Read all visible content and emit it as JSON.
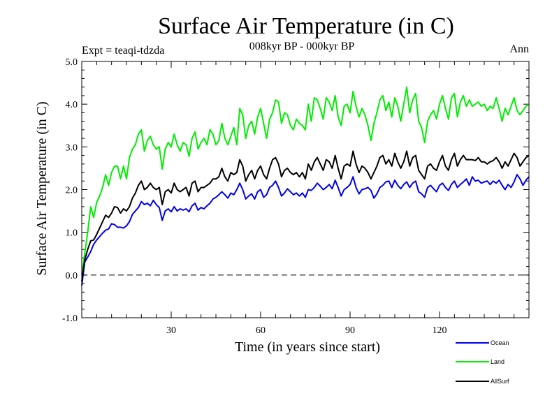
{
  "chart_data": {
    "type": "line",
    "title": "Surface Air Temperature (in C)",
    "subtitle": "008kyr BP - 000kyr BP",
    "expt_label": "Expt = teaqi-tdzda",
    "season_label": "Ann",
    "xlabel": "Time (in years since start)",
    "ylabel": "Surface Air Temperature (in C)",
    "xlim": [
      0,
      150
    ],
    "ylim": [
      -1.0,
      5.0
    ],
    "xticks": [
      30,
      60,
      90,
      120
    ],
    "yticks": [
      -1.0,
      0.0,
      1.0,
      2.0,
      3.0,
      4.0,
      5.0
    ],
    "ytick_labels": [
      "-1.0",
      "0.0",
      "1.0",
      "2.0",
      "3.0",
      "4.0",
      "5.0"
    ],
    "reference_line": 0.0,
    "legend_position": "bottom-right",
    "series": [
      {
        "name": "Ocean",
        "color": "#0000ee",
        "x": [
          0,
          1,
          2,
          3,
          4,
          5,
          6,
          7,
          8,
          9,
          10,
          11,
          12,
          13,
          14,
          15,
          16,
          17,
          18,
          19,
          20,
          21,
          22,
          23,
          24,
          25,
          26,
          27,
          28,
          29,
          30,
          31,
          32,
          33,
          34,
          35,
          36,
          37,
          38,
          39,
          40,
          41,
          42,
          43,
          44,
          45,
          46,
          47,
          48,
          49,
          50,
          51,
          52,
          53,
          54,
          55,
          56,
          57,
          58,
          59,
          60,
          61,
          62,
          63,
          64,
          65,
          66,
          67,
          68,
          69,
          70,
          71,
          72,
          73,
          74,
          75,
          76,
          77,
          78,
          79,
          80,
          81,
          82,
          83,
          84,
          85,
          86,
          87,
          88,
          89,
          90,
          91,
          92,
          93,
          94,
          95,
          96,
          97,
          98,
          99,
          100,
          101,
          102,
          103,
          104,
          105,
          106,
          107,
          108,
          109,
          110,
          111,
          112,
          113,
          114,
          115,
          116,
          117,
          118,
          119,
          120,
          121,
          122,
          123,
          124,
          125,
          126,
          127,
          128,
          129,
          130,
          131,
          132,
          133,
          134,
          135,
          136,
          137,
          138,
          139,
          140,
          141,
          142,
          143,
          144,
          145,
          146,
          147,
          148,
          149,
          150
        ],
        "values": [
          -0.25,
          0.3,
          0.42,
          0.55,
          0.72,
          0.82,
          0.9,
          0.98,
          1.05,
          1.08,
          1.2,
          1.18,
          1.12,
          1.12,
          1.1,
          1.15,
          1.25,
          1.42,
          1.5,
          1.58,
          1.72,
          1.65,
          1.68,
          1.62,
          1.75,
          1.65,
          1.58,
          1.28,
          1.5,
          1.55,
          1.48,
          1.6,
          1.5,
          1.55,
          1.52,
          1.55,
          1.48,
          1.62,
          1.68,
          1.52,
          1.58,
          1.55,
          1.62,
          1.68,
          1.78,
          1.82,
          1.88,
          1.95,
          1.88,
          1.8,
          1.92,
          1.88,
          2.0,
          2.15,
          2.0,
          1.78,
          1.85,
          1.9,
          1.78,
          1.95,
          2.0,
          1.82,
          1.88,
          2.05,
          2.1,
          2.2,
          2.05,
          1.85,
          1.92,
          2.02,
          1.95,
          1.88,
          1.92,
          1.85,
          1.92,
          1.82,
          2.0,
          1.98,
          2.05,
          2.15,
          2.08,
          2.0,
          2.05,
          2.12,
          2.02,
          2.22,
          2.05,
          1.85,
          2.0,
          2.05,
          2.12,
          2.3,
          2.05,
          1.9,
          2.0,
          2.02,
          2.05,
          1.98,
          1.8,
          1.9,
          2.05,
          2.1,
          2.18,
          2.2,
          2.05,
          2.22,
          2.1,
          2.02,
          2.12,
          2.18,
          2.05,
          2.15,
          2.2,
          1.95,
          1.9,
          1.82,
          2.05,
          2.1,
          2.02,
          1.95,
          2.1,
          2.15,
          2.05,
          1.98,
          2.12,
          2.2,
          2.05,
          2.12,
          2.18,
          2.25,
          2.1,
          2.3,
          2.2,
          2.22,
          2.15,
          2.18,
          2.2,
          2.12,
          2.2,
          2.15,
          2.22,
          2.1,
          2.0,
          2.12,
          2.05,
          2.18,
          2.35,
          2.25,
          2.1,
          2.22,
          2.3
        ]
      },
      {
        "name": "Land",
        "color": "#00ee00",
        "x": [
          0,
          1,
          2,
          3,
          4,
          5,
          6,
          7,
          8,
          9,
          10,
          11,
          12,
          13,
          14,
          15,
          16,
          17,
          18,
          19,
          20,
          21,
          22,
          23,
          24,
          25,
          26,
          27,
          28,
          29,
          30,
          31,
          32,
          33,
          34,
          35,
          36,
          37,
          38,
          39,
          40,
          41,
          42,
          43,
          44,
          45,
          46,
          47,
          48,
          49,
          50,
          51,
          52,
          53,
          54,
          55,
          56,
          57,
          58,
          59,
          60,
          61,
          62,
          63,
          64,
          65,
          66,
          67,
          68,
          69,
          70,
          71,
          72,
          73,
          74,
          75,
          76,
          77,
          78,
          79,
          80,
          81,
          82,
          83,
          84,
          85,
          86,
          87,
          88,
          89,
          90,
          91,
          92,
          93,
          94,
          95,
          96,
          97,
          98,
          99,
          100,
          101,
          102,
          103,
          104,
          105,
          106,
          107,
          108,
          109,
          110,
          111,
          112,
          113,
          114,
          115,
          116,
          117,
          118,
          119,
          120,
          121,
          122,
          123,
          124,
          125,
          126,
          127,
          128,
          129,
          130,
          131,
          132,
          133,
          134,
          135,
          136,
          137,
          138,
          139,
          140,
          141,
          142,
          143,
          144,
          145,
          146,
          147,
          148,
          149,
          150
        ],
        "values": [
          0.0,
          0.5,
          1.0,
          1.6,
          1.35,
          1.7,
          1.85,
          2.05,
          2.35,
          2.1,
          2.4,
          2.55,
          2.55,
          2.25,
          2.55,
          2.25,
          2.75,
          2.95,
          3.05,
          3.3,
          3.4,
          2.9,
          3.15,
          3.25,
          3.05,
          2.95,
          3.0,
          2.48,
          2.95,
          3.1,
          3.0,
          3.3,
          3.05,
          2.9,
          3.1,
          3.05,
          2.78,
          3.2,
          3.35,
          2.95,
          3.1,
          3.2,
          3.05,
          3.4,
          3.3,
          3.05,
          3.15,
          3.55,
          3.2,
          3.05,
          3.25,
          3.45,
          3.05,
          3.9,
          3.75,
          3.2,
          3.5,
          3.6,
          3.3,
          3.7,
          3.9,
          3.55,
          3.2,
          3.65,
          3.8,
          4.1,
          4.05,
          3.55,
          3.8,
          3.75,
          3.5,
          3.4,
          3.65,
          3.55,
          3.5,
          3.4,
          4.0,
          3.6,
          4.15,
          4.1,
          3.9,
          3.65,
          4.15,
          4.05,
          3.85,
          4.2,
          3.7,
          3.5,
          3.95,
          4.0,
          3.8,
          4.3,
          3.95,
          3.7,
          3.9,
          3.75,
          3.5,
          3.15,
          3.55,
          3.8,
          4.1,
          4.2,
          3.85,
          4.05,
          3.7,
          4.15,
          3.95,
          3.6,
          4.0,
          4.4,
          3.8,
          4.1,
          4.25,
          3.6,
          3.45,
          3.1,
          3.6,
          3.75,
          3.85,
          3.65,
          4.0,
          4.2,
          3.9,
          3.65,
          4.15,
          4.25,
          3.7,
          4.05,
          4.2,
          3.95,
          4.1,
          3.95,
          4.0,
          4.05,
          3.95,
          4.0,
          3.85,
          3.95,
          3.9,
          4.15,
          3.9,
          3.6,
          3.9,
          3.75,
          3.95,
          4.15,
          3.85,
          3.75,
          3.85,
          3.95,
          4.0
        ]
      },
      {
        "name": "AllSurf",
        "color": "#000000",
        "x": [
          0,
          1,
          2,
          3,
          4,
          5,
          6,
          7,
          8,
          9,
          10,
          11,
          12,
          13,
          14,
          15,
          16,
          17,
          18,
          19,
          20,
          21,
          22,
          23,
          24,
          25,
          26,
          27,
          28,
          29,
          30,
          31,
          32,
          33,
          34,
          35,
          36,
          37,
          38,
          39,
          40,
          41,
          42,
          43,
          44,
          45,
          46,
          47,
          48,
          49,
          50,
          51,
          52,
          53,
          54,
          55,
          56,
          57,
          58,
          59,
          60,
          61,
          62,
          63,
          64,
          65,
          66,
          67,
          68,
          69,
          70,
          71,
          72,
          73,
          74,
          75,
          76,
          77,
          78,
          79,
          80,
          81,
          82,
          83,
          84,
          85,
          86,
          87,
          88,
          89,
          90,
          91,
          92,
          93,
          94,
          95,
          96,
          97,
          98,
          99,
          100,
          101,
          102,
          103,
          104,
          105,
          106,
          107,
          108,
          109,
          110,
          111,
          112,
          113,
          114,
          115,
          116,
          117,
          118,
          119,
          120,
          121,
          122,
          123,
          124,
          125,
          126,
          127,
          128,
          129,
          130,
          131,
          132,
          133,
          134,
          135,
          136,
          137,
          138,
          139,
          140,
          141,
          142,
          143,
          144,
          145,
          146,
          147,
          148,
          149,
          150
        ],
        "values": [
          -0.15,
          0.35,
          0.6,
          0.8,
          0.82,
          0.95,
          1.1,
          1.25,
          1.4,
          1.35,
          1.45,
          1.6,
          1.58,
          1.45,
          1.55,
          1.5,
          1.6,
          1.8,
          1.92,
          2.1,
          2.2,
          2.0,
          2.05,
          2.15,
          2.05,
          2.0,
          2.05,
          1.65,
          1.95,
          2.0,
          1.92,
          2.15,
          2.0,
          1.95,
          2.0,
          2.05,
          1.85,
          2.15,
          2.2,
          1.95,
          2.05,
          2.05,
          2.1,
          2.15,
          2.25,
          2.25,
          2.3,
          2.5,
          2.3,
          2.2,
          2.4,
          2.35,
          2.4,
          2.7,
          2.55,
          2.2,
          2.35,
          2.45,
          2.25,
          2.45,
          2.55,
          2.35,
          2.25,
          2.5,
          2.7,
          2.75,
          2.6,
          2.3,
          2.45,
          2.5,
          2.4,
          2.35,
          2.4,
          2.3,
          2.4,
          2.25,
          2.6,
          2.45,
          2.65,
          2.75,
          2.6,
          2.45,
          2.7,
          2.65,
          2.5,
          2.8,
          2.5,
          2.25,
          2.55,
          2.6,
          2.55,
          2.9,
          2.6,
          2.4,
          2.55,
          2.5,
          2.4,
          2.25,
          2.4,
          2.55,
          2.75,
          2.8,
          2.6,
          2.7,
          2.55,
          2.85,
          2.65,
          2.5,
          2.65,
          2.9,
          2.55,
          2.75,
          2.8,
          2.45,
          2.35,
          2.25,
          2.55,
          2.6,
          2.5,
          2.45,
          2.65,
          2.8,
          2.55,
          2.45,
          2.7,
          2.85,
          2.55,
          2.7,
          2.8,
          2.7,
          2.7,
          2.7,
          2.68,
          2.75,
          2.65,
          2.65,
          2.6,
          2.65,
          2.68,
          2.75,
          2.65,
          2.5,
          2.65,
          2.55,
          2.7,
          2.85,
          2.75,
          2.55,
          2.65,
          2.75,
          2.8
        ]
      }
    ]
  }
}
